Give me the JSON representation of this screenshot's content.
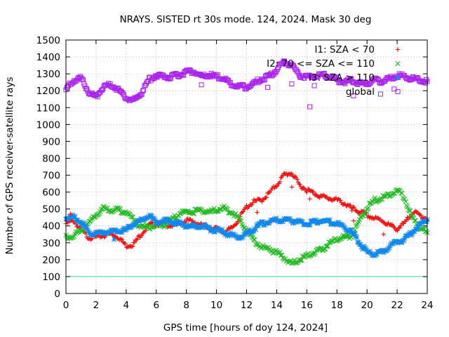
{
  "chart_data": {
    "type": "scatter",
    "title": "NRAYS. SISTED rt 30s mode. 124, 2024. Mask 30 deg",
    "xlabel": "GPS time [hours of doy 124, 2024]",
    "ylabel": "Number of GPS receiver-satellite rays",
    "xlim": [
      0,
      24
    ],
    "ylim": [
      0,
      1500
    ],
    "xticks": [
      0,
      2,
      4,
      6,
      8,
      10,
      12,
      14,
      16,
      18,
      20,
      22,
      24
    ],
    "yticks": [
      0,
      100,
      200,
      300,
      400,
      500,
      600,
      700,
      800,
      900,
      1000,
      1100,
      1200,
      1300,
      1400,
      1500
    ],
    "grid": true,
    "legend_position": "top-right",
    "threshold_line": {
      "y": 100,
      "color": "#33cccc"
    },
    "series": [
      {
        "name": "I1: SZA < 70",
        "marker": "+",
        "color": "#ee1111",
        "x": [
          0,
          0.5,
          1,
          1.5,
          2,
          2.5,
          3,
          3.5,
          4,
          4.5,
          5,
          5.5,
          6,
          6.5,
          7,
          7.5,
          8,
          8.5,
          9,
          9.5,
          10,
          10.5,
          11,
          11.5,
          12,
          12.5,
          13,
          13.5,
          14,
          14.5,
          15,
          15.5,
          16,
          16.5,
          17,
          17.5,
          18,
          18.5,
          19,
          19.5,
          20,
          20.5,
          21,
          21.5,
          22,
          22.5,
          23,
          23.5,
          24
        ],
        "y": [
          420,
          440,
          380,
          340,
          340,
          350,
          360,
          340,
          290,
          300,
          360,
          410,
          420,
          420,
          410,
          420,
          440,
          430,
          410,
          400,
          390,
          370,
          390,
          450,
          520,
          550,
          560,
          600,
          650,
          710,
          720,
          650,
          620,
          600,
          580,
          570,
          560,
          540,
          510,
          490,
          470,
          450,
          440,
          410,
          390,
          420,
          490,
          470,
          450
        ]
      },
      {
        "name": "I2: 70 <= SZA <= 110",
        "marker": "x",
        "color": "#22bb22",
        "x": [
          0,
          0.5,
          1,
          1.5,
          2,
          2.5,
          3,
          3.5,
          4,
          4.5,
          5,
          5.5,
          6,
          6.5,
          7,
          7.5,
          8,
          8.5,
          9,
          9.5,
          10,
          10.5,
          11,
          11.5,
          12,
          12.5,
          13,
          13.5,
          14,
          14.5,
          15,
          15.5,
          16,
          16.5,
          17,
          17.5,
          18,
          18.5,
          19,
          19.5,
          20,
          20.5,
          21,
          21.5,
          22,
          22.5,
          23,
          23.5,
          24
        ],
        "y": [
          340,
          350,
          380,
          420,
          470,
          510,
          500,
          500,
          490,
          440,
          400,
          400,
          410,
          410,
          440,
          480,
          490,
          490,
          500,
          490,
          500,
          510,
          490,
          450,
          380,
          320,
          280,
          270,
          250,
          220,
          180,
          210,
          230,
          250,
          270,
          300,
          330,
          340,
          350,
          440,
          510,
          560,
          570,
          590,
          620,
          570,
          450,
          400,
          360
        ]
      },
      {
        "name": "I3: SZA > 110",
        "marker": "*",
        "color": "#1188ee",
        "x": [
          0,
          0.5,
          1,
          1.5,
          2,
          2.5,
          3,
          3.5,
          4,
          4.5,
          5,
          5.5,
          6,
          6.5,
          7,
          7.5,
          8,
          8.5,
          9,
          9.5,
          10,
          10.5,
          11,
          11.5,
          12,
          12.5,
          13,
          13.5,
          14,
          14.5,
          15,
          15.5,
          16,
          16.5,
          17,
          17.5,
          18,
          18.5,
          19,
          19.5,
          20,
          20.5,
          21,
          21.5,
          22,
          22.5,
          23,
          23.5,
          24
        ],
        "y": [
          450,
          460,
          430,
          370,
          360,
          370,
          370,
          380,
          380,
          420,
          440,
          470,
          430,
          440,
          430,
          420,
          410,
          400,
          410,
          390,
          380,
          370,
          350,
          340,
          360,
          390,
          420,
          430,
          440,
          440,
          440,
          430,
          420,
          430,
          440,
          430,
          420,
          400,
          370,
          310,
          250,
          240,
          250,
          290,
          310,
          330,
          370,
          410,
          450
        ]
      },
      {
        "name": "global",
        "marker": "square",
        "color": "#aa22ee",
        "x": [
          0,
          0.5,
          1,
          1.5,
          2,
          2.5,
          3,
          3.5,
          4,
          4.5,
          5,
          5.5,
          6,
          6.5,
          7,
          7.5,
          8,
          8.5,
          9,
          9.5,
          10,
          10.5,
          11,
          11.5,
          12,
          12.5,
          13,
          13.5,
          14,
          14.5,
          15,
          15.5,
          16,
          16.5,
          17,
          17.5,
          18,
          18.5,
          19,
          19.5,
          20,
          20.5,
          21,
          21.5,
          22,
          22.5,
          23,
          23.5,
          24
        ],
        "y": [
          1210,
          1270,
          1280,
          1200,
          1170,
          1230,
          1240,
          1210,
          1160,
          1150,
          1190,
          1270,
          1300,
          1290,
          1290,
          1300,
          1320,
          1320,
          1290,
          1300,
          1290,
          1280,
          1240,
          1230,
          1230,
          1250,
          1280,
          1290,
          1330,
          1380,
          1360,
          1300,
          1290,
          1290,
          1300,
          1290,
          1270,
          1260,
          1270,
          1250,
          1250,
          1270,
          1260,
          1280,
          1300,
          1290,
          1280,
          1270,
          1260
        ],
        "outliers": [
          {
            "x": 15.0,
            "y": 1240
          },
          {
            "x": 16.2,
            "y": 1105
          },
          {
            "x": 16.5,
            "y": 1230
          },
          {
            "x": 19.1,
            "y": 1170
          },
          {
            "x": 20.9,
            "y": 1180
          },
          {
            "x": 21.8,
            "y": 1210
          },
          {
            "x": 9.0,
            "y": 1235
          },
          {
            "x": 13.4,
            "y": 1220
          }
        ]
      }
    ],
    "extra_points": [
      {
        "series": 0,
        "x": 12.7,
        "y": 480
      },
      {
        "series": 0,
        "x": 15.0,
        "y": 630
      },
      {
        "series": 0,
        "x": 16.2,
        "y": 560
      },
      {
        "series": 0,
        "x": 19.0,
        "y": 490
      },
      {
        "series": 0,
        "x": 19.1,
        "y": 430
      },
      {
        "series": 0,
        "x": 21.1,
        "y": 350
      },
      {
        "series": 0,
        "x": 0.3,
        "y": 470
      },
      {
        "series": 2,
        "x": 3.2,
        "y": 320
      }
    ]
  }
}
